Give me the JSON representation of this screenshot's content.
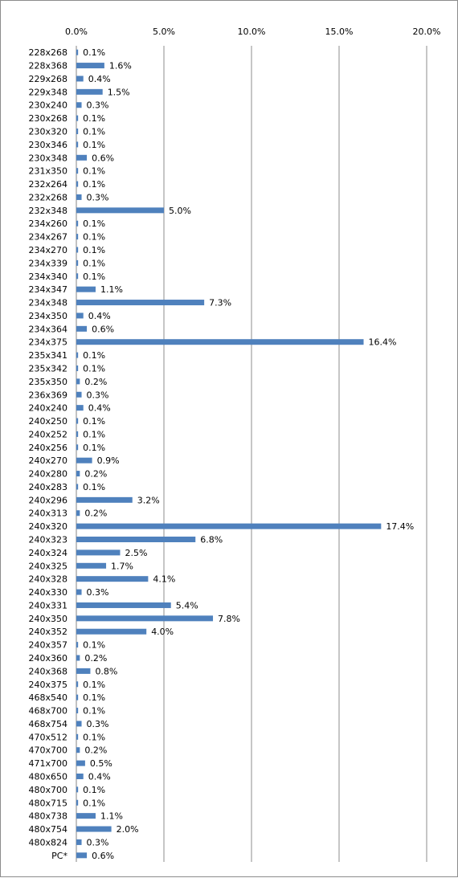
{
  "chart_data": {
    "type": "bar",
    "orientation": "horizontal",
    "xlim": [
      0,
      20
    ],
    "x_ticks": [
      "0.0%",
      "5.0%",
      "10.0%",
      "15.0%",
      "20.0%"
    ],
    "x_tick_values": [
      0,
      5,
      10,
      15,
      20
    ],
    "grid": "vertical",
    "legend": "none",
    "bar_color": "#4f81bd",
    "categories": [
      "228x268",
      "228x368",
      "229x268",
      "229x348",
      "230x240",
      "230x268",
      "230x320",
      "230x346",
      "230x348",
      "231x350",
      "232x264",
      "232x268",
      "232x348",
      "234x260",
      "234x267",
      "234x270",
      "234x339",
      "234x340",
      "234x347",
      "234x348",
      "234x350",
      "234x364",
      "234x375",
      "235x341",
      "235x342",
      "235x350",
      "236x369",
      "240x240",
      "240x250",
      "240x252",
      "240x256",
      "240x270",
      "240x280",
      "240x283",
      "240x296",
      "240x313",
      "240x320",
      "240x323",
      "240x324",
      "240x325",
      "240x328",
      "240x330",
      "240x331",
      "240x350",
      "240x352",
      "240x357",
      "240x360",
      "240x368",
      "240x375",
      "468x540",
      "468x700",
      "468x754",
      "470x512",
      "470x700",
      "471x700",
      "480x650",
      "480x700",
      "480x715",
      "480x738",
      "480x754",
      "480x824",
      "PC*"
    ],
    "values": [
      0.1,
      1.6,
      0.4,
      1.5,
      0.3,
      0.1,
      0.1,
      0.1,
      0.6,
      0.1,
      0.1,
      0.3,
      5.0,
      0.1,
      0.1,
      0.1,
      0.1,
      0.1,
      1.1,
      7.3,
      0.4,
      0.6,
      16.4,
      0.1,
      0.1,
      0.2,
      0.3,
      0.4,
      0.1,
      0.1,
      0.1,
      0.9,
      0.2,
      0.1,
      3.2,
      0.2,
      17.4,
      6.8,
      2.5,
      1.7,
      4.1,
      0.3,
      5.4,
      7.8,
      4.0,
      0.1,
      0.2,
      0.8,
      0.1,
      0.1,
      0.1,
      0.3,
      0.1,
      0.2,
      0.5,
      0.4,
      0.1,
      0.1,
      1.1,
      2.0,
      0.3,
      0.6
    ],
    "labels": [
      "0.1%",
      "1.6%",
      "0.4%",
      "1.5%",
      "0.3%",
      "0.1%",
      "0.1%",
      "0.1%",
      "0.6%",
      "0.1%",
      "0.1%",
      "0.3%",
      "5.0%",
      "0.1%",
      "0.1%",
      "0.1%",
      "0.1%",
      "0.1%",
      "1.1%",
      "7.3%",
      "0.4%",
      "0.6%",
      "16.4%",
      "0.1%",
      "0.1%",
      "0.2%",
      "0.3%",
      "0.4%",
      "0.1%",
      "0.1%",
      "0.1%",
      "0.9%",
      "0.2%",
      "0.1%",
      "3.2%",
      "0.2%",
      "17.4%",
      "6.8%",
      "2.5%",
      "1.7%",
      "4.1%",
      "0.3%",
      "5.4%",
      "7.8%",
      "4.0%",
      "0.1%",
      "0.2%",
      "0.8%",
      "0.1%",
      "0.1%",
      "0.1%",
      "0.3%",
      "0.1%",
      "0.2%",
      "0.5%",
      "0.4%",
      "0.1%",
      "0.1%",
      "1.1%",
      "2.0%",
      "0.3%",
      "0.6%"
    ]
  }
}
